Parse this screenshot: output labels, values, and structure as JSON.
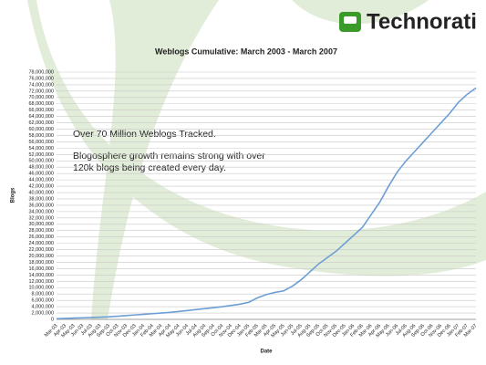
{
  "brand": "Technorati",
  "chart_data": {
    "type": "line",
    "title": "Weblogs Cumulative: March 2003 - March 2007",
    "xlabel": "Date",
    "ylabel": "Blogs",
    "annotations": [
      "Over 70 Million Weblogs Tracked.",
      "Blogosphere growth remains strong with over",
      "120k blogs being created every day."
    ],
    "categories": [
      "Mar-03",
      "Apr-03",
      "May-03",
      "Jun-03",
      "Jul-03",
      "Aug-03",
      "Sep-03",
      "Oct-03",
      "Nov-03",
      "Dec-03",
      "Jan-04",
      "Feb-04",
      "Mar-04",
      "Apr-04",
      "May-04",
      "Jun-04",
      "Jul-04",
      "Aug-04",
      "Sep-04",
      "Oct-04",
      "Nov-04",
      "Dec-04",
      "Jan-05",
      "Feb-05",
      "Mar-05",
      "Apr-05",
      "May-05",
      "Jun-05",
      "Jul-05",
      "Aug-05",
      "Sep-05",
      "Oct-05",
      "Nov-05",
      "Dec-05",
      "Jan-06",
      "Feb-06",
      "Mar-06",
      "Apr-06",
      "May-06",
      "Jun-06",
      "Jul-06",
      "Aug-06",
      "Sep-06",
      "Oct-06",
      "Nov-06",
      "Dec-06",
      "Jan-07",
      "Feb-07",
      "Mar-07"
    ],
    "series": [
      {
        "name": "Blogs",
        "color": "#6d9fd6",
        "values": [
          200000,
          300000,
          400000,
          500000,
          600000,
          700000,
          800000,
          1000000,
          1200000,
          1400000,
          1600000,
          1800000,
          2000000,
          2200000,
          2500000,
          2800000,
          3100000,
          3400000,
          3700000,
          4000000,
          4400000,
          4800000,
          5400000,
          6800000,
          7800000,
          8500000,
          9000000,
          10500000,
          12500000,
          15000000,
          17500000,
          19500000,
          21500000,
          24000000,
          26500000,
          29000000,
          33000000,
          37000000,
          42000000,
          46500000,
          50000000,
          53000000,
          56000000,
          59000000,
          62000000,
          65000000,
          68500000,
          71000000,
          73000000
        ]
      }
    ],
    "ylim": [
      0,
      78000000
    ],
    "yticks": [
      0,
      {
        "value": 2000000,
        "label": "2,000,000"
      },
      {
        "value": 4000000,
        "label": "4,000,000"
      },
      {
        "value": 6000000,
        "label": "6,000,000"
      },
      {
        "value": 8000000,
        "label": "8,000,000"
      },
      {
        "value": 10000000,
        "label": "10,000,000"
      },
      {
        "value": 12000000,
        "label": "12,000,000"
      },
      {
        "value": 14000000,
        "label": "14,000,000"
      },
      {
        "value": 16000000,
        "label": "16,000,000"
      },
      {
        "value": 18000000,
        "label": "18,000,000"
      },
      {
        "value": 20000000,
        "label": "20,000,000"
      },
      {
        "value": 22000000,
        "label": "22,000,000"
      },
      {
        "value": 24000000,
        "label": "24,000,000"
      },
      {
        "value": 26000000,
        "label": "26,000,000"
      },
      {
        "value": 28000000,
        "label": "28,000,000"
      },
      {
        "value": 30000000,
        "label": "30,000,000"
      },
      {
        "value": 32000000,
        "label": "32,000,000"
      },
      {
        "value": 34000000,
        "label": "34,000,000"
      },
      {
        "value": 36000000,
        "label": "36,000,000"
      },
      {
        "value": 38000000,
        "label": "38,000,000"
      },
      {
        "value": 40000000,
        "label": "40,000,000"
      },
      {
        "value": 42000000,
        "label": "42,000,000"
      },
      {
        "value": 44000000,
        "label": "44,000,000"
      },
      {
        "value": 46000000,
        "label": "46,000,000"
      },
      {
        "value": 48000000,
        "label": "48,000,000"
      },
      {
        "value": 50000000,
        "label": "50,000,000"
      },
      {
        "value": 52000000,
        "label": "52,000,000"
      },
      {
        "value": 54000000,
        "label": "54,000,000"
      },
      {
        "value": 56000000,
        "label": "56,000,000"
      },
      {
        "value": 58000000,
        "label": "58,000,000"
      },
      {
        "value": 60000000,
        "label": "60,000,000"
      },
      {
        "value": 62000000,
        "label": "62,000,000"
      },
      {
        "value": 64000000,
        "label": "64,000,000"
      },
      {
        "value": 66000000,
        "label": "66,000,000"
      },
      {
        "value": 68000000,
        "label": "68,000,000"
      },
      {
        "value": 70000000,
        "label": "70,000,000"
      },
      {
        "value": 72000000,
        "label": "72,000,000"
      },
      {
        "value": 74000000,
        "label": "74,000,000"
      },
      {
        "value": 76000000,
        "label": "76,000,000"
      },
      {
        "value": 78000000,
        "label": "78,000,000"
      }
    ],
    "grid": true
  }
}
